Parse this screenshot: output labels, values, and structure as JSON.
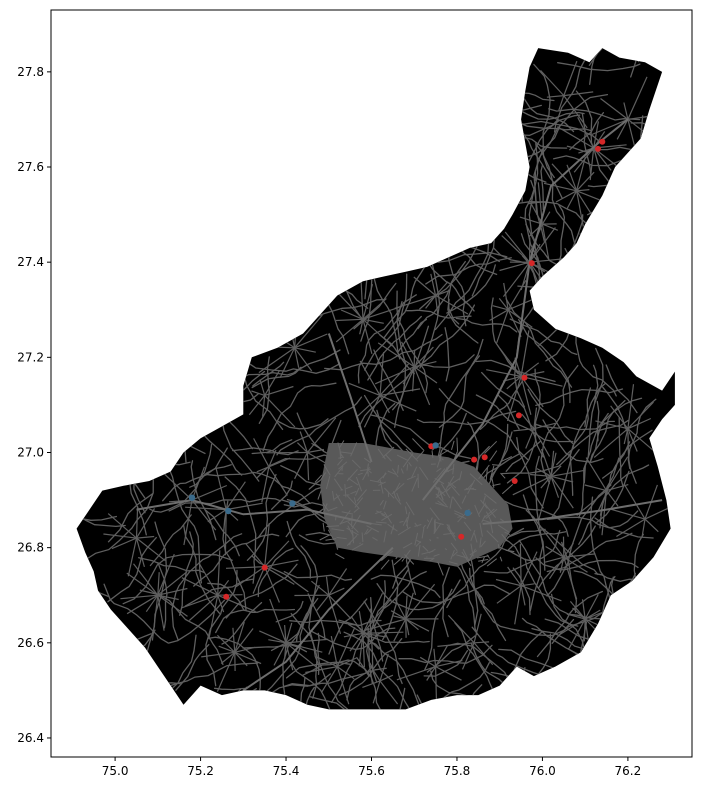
{
  "chart_data": {
    "type": "map",
    "title": "",
    "xlabel": "",
    "ylabel": "",
    "xlim": [
      74.85,
      76.35
    ],
    "ylim": [
      26.36,
      27.93
    ],
    "x_ticks": [
      {
        "value": 75.0,
        "label": "75.0"
      },
      {
        "value": 75.2,
        "label": "75.2"
      },
      {
        "value": 75.4,
        "label": "75.4"
      },
      {
        "value": 75.6,
        "label": "75.6"
      },
      {
        "value": 75.8,
        "label": "75.8"
      },
      {
        "value": 76.0,
        "label": "76.0"
      },
      {
        "value": 76.2,
        "label": "76.2"
      }
    ],
    "y_ticks": [
      {
        "value": 26.4,
        "label": "26.4"
      },
      {
        "value": 26.6,
        "label": "26.6"
      },
      {
        "value": 26.8,
        "label": "26.8"
      },
      {
        "value": 27.0,
        "label": "27.0"
      },
      {
        "value": 27.2,
        "label": "27.2"
      },
      {
        "value": 27.4,
        "label": "27.4"
      },
      {
        "value": 27.6,
        "label": "27.6"
      },
      {
        "value": 27.8,
        "label": "27.8"
      }
    ],
    "grid": false,
    "legend": "none",
    "colors": {
      "region_fill": "#000000",
      "road_network": "#5f5f5f",
      "urban_core": "#595959",
      "red_points": "#d62728",
      "blue_points": "#3a6b8c"
    },
    "boundary": [
      [
        75.99,
        27.85
      ],
      [
        76.06,
        27.84
      ],
      [
        76.11,
        27.82
      ],
      [
        76.14,
        27.85
      ],
      [
        76.18,
        27.83
      ],
      [
        76.24,
        27.82
      ],
      [
        76.28,
        27.8
      ],
      [
        76.25,
        27.72
      ],
      [
        76.23,
        27.66
      ],
      [
        76.17,
        27.6
      ],
      [
        76.14,
        27.54
      ],
      [
        76.1,
        27.48
      ],
      [
        76.08,
        27.44
      ],
      [
        76.05,
        27.41
      ],
      [
        76.0,
        27.37
      ],
      [
        75.97,
        27.34
      ],
      [
        75.98,
        27.3
      ],
      [
        76.03,
        27.26
      ],
      [
        76.09,
        27.24
      ],
      [
        76.14,
        27.22
      ],
      [
        76.19,
        27.19
      ],
      [
        76.22,
        27.16
      ],
      [
        76.28,
        27.13
      ],
      [
        76.31,
        27.17
      ],
      [
        76.31,
        27.1
      ],
      [
        76.28,
        27.07
      ],
      [
        76.25,
        27.03
      ],
      [
        76.27,
        26.97
      ],
      [
        76.29,
        26.9
      ],
      [
        76.3,
        26.84
      ],
      [
        76.26,
        26.78
      ],
      [
        76.21,
        26.73
      ],
      [
        76.16,
        26.7
      ],
      [
        76.13,
        26.64
      ],
      [
        76.09,
        26.58
      ],
      [
        76.03,
        26.55
      ],
      [
        75.98,
        26.53
      ],
      [
        75.94,
        26.55
      ],
      [
        75.9,
        26.51
      ],
      [
        75.85,
        26.49
      ],
      [
        75.8,
        26.49
      ],
      [
        75.74,
        26.48
      ],
      [
        75.68,
        26.46
      ],
      [
        75.62,
        26.46
      ],
      [
        75.56,
        26.46
      ],
      [
        75.5,
        26.46
      ],
      [
        75.45,
        26.47
      ],
      [
        75.4,
        26.49
      ],
      [
        75.35,
        26.5
      ],
      [
        75.3,
        26.5
      ],
      [
        75.25,
        26.49
      ],
      [
        75.2,
        26.51
      ],
      [
        75.16,
        26.47
      ],
      [
        75.13,
        26.51
      ],
      [
        75.1,
        26.55
      ],
      [
        75.07,
        26.59
      ],
      [
        75.03,
        26.63
      ],
      [
        74.99,
        26.67
      ],
      [
        74.96,
        26.71
      ],
      [
        74.95,
        26.75
      ],
      [
        74.93,
        26.79
      ],
      [
        74.91,
        26.84
      ],
      [
        74.94,
        26.88
      ],
      [
        74.97,
        26.92
      ],
      [
        75.02,
        26.93
      ],
      [
        75.08,
        26.94
      ],
      [
        75.13,
        26.96
      ],
      [
        75.16,
        27.0
      ],
      [
        75.2,
        27.03
      ],
      [
        75.24,
        27.05
      ],
      [
        75.3,
        27.08
      ],
      [
        75.3,
        27.14
      ],
      [
        75.32,
        27.2
      ],
      [
        75.38,
        27.22
      ],
      [
        75.44,
        27.25
      ],
      [
        75.48,
        27.29
      ],
      [
        75.52,
        27.33
      ],
      [
        75.58,
        27.36
      ],
      [
        75.63,
        27.37
      ],
      [
        75.68,
        27.38
      ],
      [
        75.73,
        27.39
      ],
      [
        75.78,
        27.41
      ],
      [
        75.83,
        27.43
      ],
      [
        75.88,
        27.44
      ],
      [
        75.91,
        27.47
      ],
      [
        75.93,
        27.5
      ],
      [
        75.96,
        27.55
      ],
      [
        75.97,
        27.6
      ],
      [
        75.96,
        27.65
      ],
      [
        75.95,
        27.7
      ],
      [
        75.96,
        27.76
      ],
      [
        75.97,
        27.81
      ],
      [
        75.99,
        27.85
      ]
    ],
    "urban_core": [
      [
        75.5,
        27.02
      ],
      [
        75.58,
        27.02
      ],
      [
        75.64,
        27.01
      ],
      [
        75.7,
        27.0
      ],
      [
        75.78,
        26.99
      ],
      [
        75.84,
        26.97
      ],
      [
        75.88,
        26.93
      ],
      [
        75.92,
        26.89
      ],
      [
        75.93,
        26.84
      ],
      [
        75.9,
        26.8
      ],
      [
        75.85,
        26.78
      ],
      [
        75.8,
        26.76
      ],
      [
        75.74,
        26.77
      ],
      [
        75.66,
        26.78
      ],
      [
        75.58,
        26.79
      ],
      [
        75.52,
        26.8
      ],
      [
        75.49,
        26.86
      ],
      [
        75.48,
        26.93
      ],
      [
        75.5,
        27.02
      ]
    ],
    "hubs": [
      [
        75.72,
        26.9
      ],
      [
        75.62,
        27.12
      ],
      [
        75.7,
        27.18
      ],
      [
        75.45,
        27.0
      ],
      [
        75.36,
        26.97
      ],
      [
        75.26,
        26.88
      ],
      [
        75.18,
        26.9
      ],
      [
        75.24,
        26.7
      ],
      [
        75.35,
        26.76
      ],
      [
        75.58,
        26.62
      ],
      [
        75.52,
        26.55
      ],
      [
        75.68,
        26.65
      ],
      [
        75.84,
        26.6
      ],
      [
        75.95,
        26.72
      ],
      [
        76.05,
        26.78
      ],
      [
        76.1,
        26.65
      ],
      [
        76.15,
        26.92
      ],
      [
        76.2,
        27.05
      ],
      [
        75.98,
        27.05
      ],
      [
        75.95,
        27.16
      ],
      [
        75.97,
        27.4
      ],
      [
        75.92,
        27.3
      ],
      [
        75.75,
        27.33
      ],
      [
        75.58,
        27.28
      ],
      [
        75.42,
        27.22
      ],
      [
        76.08,
        27.55
      ],
      [
        76.2,
        27.7
      ],
      [
        76.12,
        27.64
      ],
      [
        76.05,
        27.75
      ],
      [
        76.0,
        27.48
      ],
      [
        75.35,
        27.12
      ],
      [
        75.05,
        26.82
      ],
      [
        75.1,
        26.7
      ],
      [
        75.28,
        26.58
      ],
      [
        75.4,
        26.6
      ],
      [
        75.5,
        26.7
      ],
      [
        75.62,
        26.52
      ],
      [
        75.75,
        26.55
      ],
      [
        76.02,
        26.95
      ],
      [
        76.24,
        26.86
      ]
    ],
    "red_points": [
      [
        76.14,
        27.653
      ],
      [
        76.13,
        27.638
      ],
      [
        75.975,
        27.398
      ],
      [
        75.958,
        27.157
      ],
      [
        75.945,
        27.078
      ],
      [
        75.84,
        26.985
      ],
      [
        75.935,
        26.94
      ],
      [
        75.81,
        26.823
      ],
      [
        75.35,
        26.758
      ],
      [
        75.26,
        26.697
      ],
      [
        75.74,
        27.013
      ],
      [
        75.865,
        26.99
      ]
    ],
    "blue_points": [
      [
        75.18,
        26.905
      ],
      [
        75.265,
        26.877
      ],
      [
        75.415,
        26.893
      ],
      [
        75.75,
        27.015
      ],
      [
        75.825,
        26.873
      ]
    ]
  }
}
